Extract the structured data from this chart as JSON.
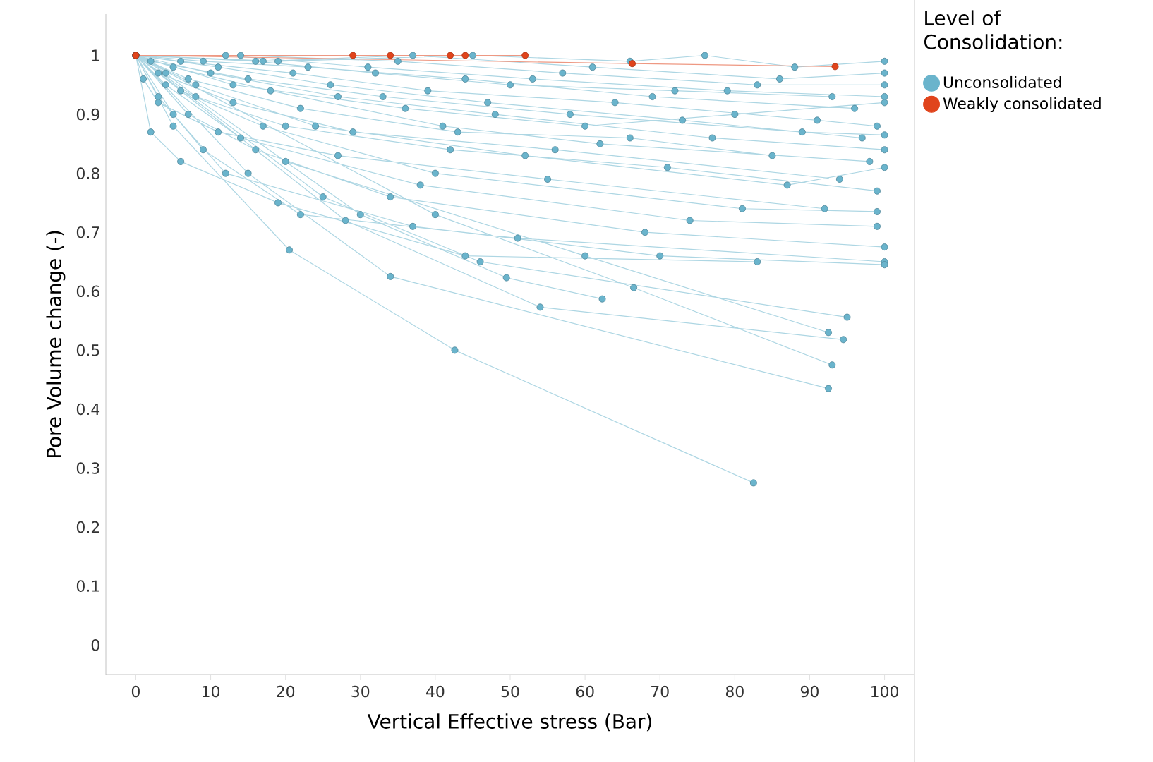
{
  "chart_data": {
    "type": "line",
    "xlabel": "Vertical Effective stress (Bar)",
    "ylabel": "Pore Volume change (-)",
    "legend_title": "Level of Consolidation:",
    "legend": "right",
    "marker": "circle",
    "grid": false,
    "xlim": [
      -4,
      104
    ],
    "ylim": [
      -0.05,
      1.07
    ],
    "xticks": [
      0,
      10,
      20,
      30,
      40,
      50,
      60,
      70,
      80,
      90,
      100
    ],
    "yticks": [
      0,
      0.1,
      0.2,
      0.3,
      0.4,
      0.5,
      0.6,
      0.7,
      0.8,
      0.9,
      1
    ],
    "series": [
      {
        "name": "Unconsolidated",
        "color": "#6ab4cc",
        "x": [
          0,
          5,
          20.5,
          42.6,
          82.5,
          null,
          0,
          15,
          34,
          92.5,
          null,
          0,
          28,
          54,
          94.5,
          null,
          0,
          40,
          66.5,
          93,
          null,
          0,
          25,
          46,
          95,
          null,
          0,
          30,
          49.5,
          62.3,
          null,
          0,
          20,
          60,
          92.5,
          null,
          0,
          2,
          6,
          19,
          44,
          83,
          null,
          0,
          3,
          9,
          22,
          51,
          100,
          null,
          0,
          5,
          12,
          37,
          70,
          100,
          null,
          0,
          7,
          16,
          34,
          68,
          100,
          null,
          0,
          4,
          14,
          38,
          74,
          99,
          null,
          0,
          6,
          17,
          40,
          81,
          99,
          null,
          0,
          8,
          24,
          52,
          87,
          100,
          null,
          0,
          3,
          13,
          29,
          56,
          94,
          null,
          0,
          5,
          18,
          41,
          62,
          98,
          null,
          0,
          10,
          27,
          48,
          77,
          100,
          null,
          0,
          2,
          15,
          33,
          58,
          89,
          100,
          null,
          0,
          6,
          21,
          39,
          64,
          91,
          99,
          null,
          0,
          9,
          23,
          44,
          69,
          96,
          null,
          0,
          12,
          31,
          53,
          79,
          100,
          null,
          0,
          14,
          35,
          57,
          83,
          100,
          null,
          0,
          17,
          37,
          61,
          86,
          100,
          null,
          0,
          19,
          45,
          66,
          76,
          88,
          100,
          null,
          0,
          11,
          26,
          47,
          73,
          97,
          null,
          0,
          4,
          8,
          20,
          42,
          71,
          99,
          null,
          0,
          1,
          3,
          11,
          27,
          55,
          92,
          null,
          0,
          16,
          32,
          50,
          72,
          93,
          null,
          0,
          7,
          22,
          43,
          66,
          85,
          null,
          0,
          13,
          36,
          60,
          80,
          100
        ],
        "values": [
          1,
          0.88,
          0.67,
          0.5,
          0.275,
          null,
          1,
          0.8,
          0.625,
          0.435,
          null,
          1,
          0.72,
          0.573,
          0.518,
          null,
          1,
          0.73,
          0.606,
          0.475,
          null,
          1,
          0.76,
          0.65,
          0.556,
          null,
          1,
          0.73,
          0.623,
          0.587,
          null,
          1,
          0.82,
          0.66,
          0.53,
          null,
          1,
          0.87,
          0.82,
          0.75,
          0.66,
          0.65,
          null,
          1,
          0.93,
          0.84,
          0.73,
          0.69,
          0.65,
          null,
          1,
          0.9,
          0.8,
          0.71,
          0.66,
          0.645,
          null,
          1,
          0.9,
          0.84,
          0.76,
          0.7,
          0.675,
          null,
          1,
          0.95,
          0.86,
          0.78,
          0.72,
          0.71,
          null,
          1,
          0.94,
          0.88,
          0.8,
          0.74,
          0.735,
          null,
          1,
          0.95,
          0.88,
          0.83,
          0.78,
          0.81,
          null,
          1,
          0.97,
          0.92,
          0.87,
          0.84,
          0.79,
          null,
          1,
          0.98,
          0.94,
          0.88,
          0.85,
          0.82,
          null,
          1,
          0.97,
          0.93,
          0.9,
          0.86,
          0.84,
          null,
          1,
          0.99,
          0.96,
          0.93,
          0.9,
          0.87,
          0.865,
          null,
          1,
          0.99,
          0.97,
          0.94,
          0.92,
          0.89,
          0.88,
          null,
          1,
          0.99,
          0.98,
          0.96,
          0.93,
          0.91,
          null,
          1,
          1,
          0.98,
          0.96,
          0.94,
          0.93,
          null,
          1,
          1,
          0.99,
          0.97,
          0.95,
          0.95,
          null,
          1,
          0.99,
          1,
          0.98,
          0.96,
          0.97,
          null,
          1,
          0.99,
          1,
          0.99,
          1,
          0.98,
          0.99,
          null,
          1,
          0.98,
          0.95,
          0.92,
          0.89,
          0.86,
          null,
          1,
          0.97,
          0.93,
          0.88,
          0.84,
          0.81,
          0.77,
          null,
          1,
          0.96,
          0.92,
          0.87,
          0.83,
          0.79,
          0.74,
          null,
          1,
          0.99,
          0.97,
          0.95,
          0.94,
          0.93,
          null,
          1,
          0.96,
          0.91,
          0.87,
          0.86,
          0.83,
          null,
          1,
          0.95,
          0.91,
          0.88,
          0.9,
          0.92
        ]
      },
      {
        "name": "Weakly consolidated",
        "color": "#e0441c",
        "x": [
          0,
          29,
          34,
          42,
          44,
          52,
          null,
          0,
          66.3,
          93.4
        ],
        "values": [
          1,
          1,
          1,
          1,
          1,
          1,
          null,
          1,
          0.986,
          0.981
        ]
      }
    ]
  }
}
